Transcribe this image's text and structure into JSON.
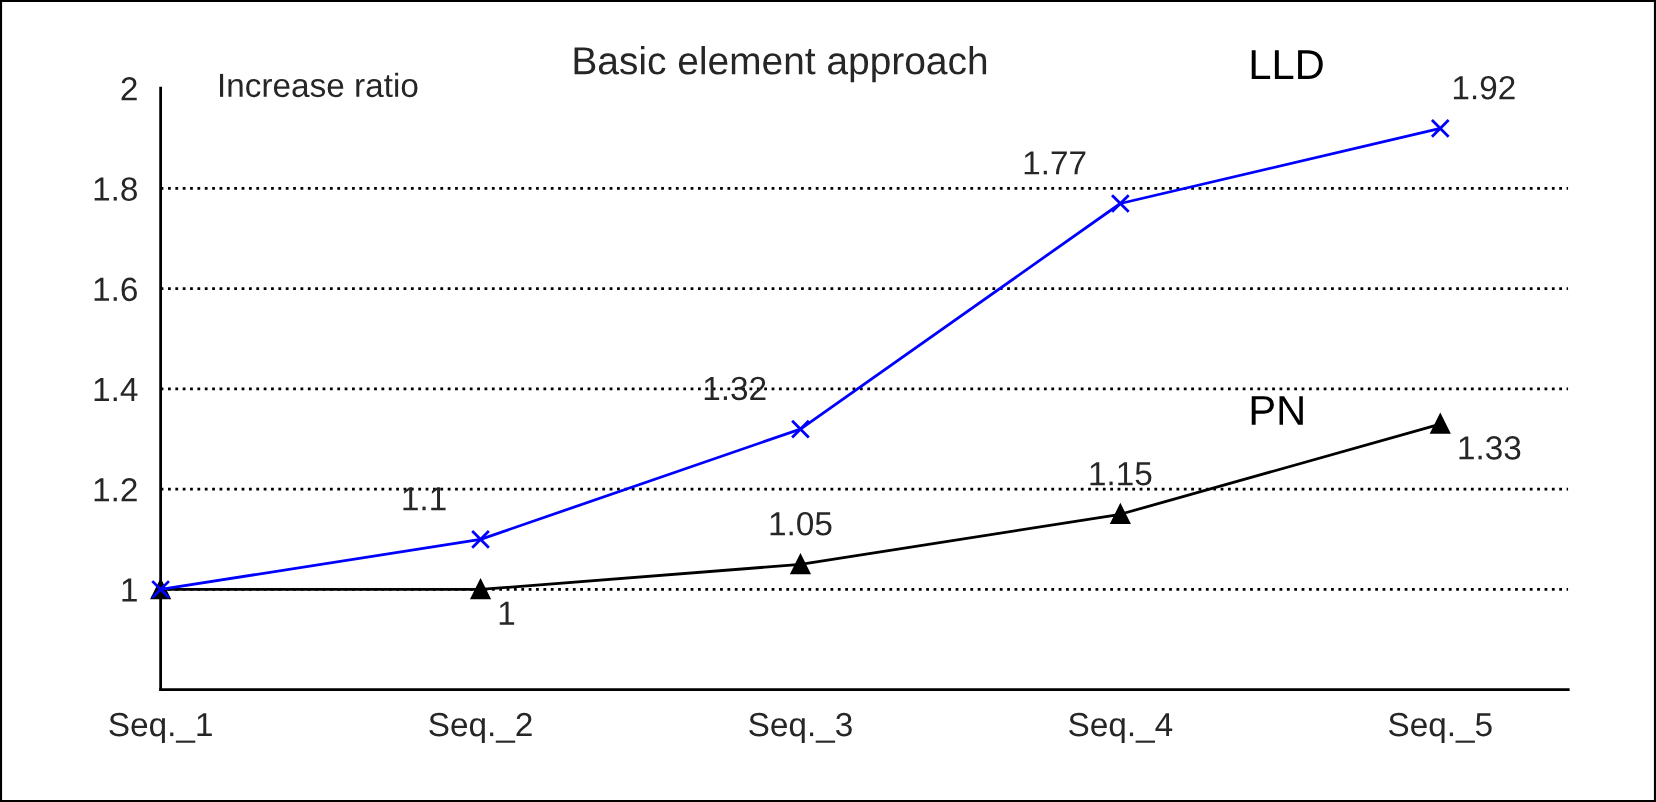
{
  "chart_data": {
    "type": "line",
    "title": "Basic element approach",
    "ylabel": "Increase ratio",
    "categories": [
      "Seq._1",
      "Seq._2",
      "Seq._3",
      "Seq._4",
      "Seq._5"
    ],
    "series": [
      {
        "name": "LLD",
        "color": "#0000ff",
        "marker": "cross",
        "values": [
          1,
          1.1,
          1.32,
          1.77,
          1.92
        ],
        "value_labels": [
          null,
          "1.1",
          "1.32",
          "1.77",
          "1.92"
        ]
      },
      {
        "name": "PN",
        "color": "#000000",
        "marker": "triangle",
        "values": [
          1,
          1,
          1.05,
          1.15,
          1.33
        ],
        "value_labels": [
          null,
          "1",
          "1.05",
          "1.15",
          "1.33"
        ]
      }
    ],
    "ylim": [
      0.8,
      2
    ],
    "yticks": [
      1,
      1.2,
      1.4,
      1.6,
      1.8,
      2
    ],
    "grid": "y",
    "line_style": "solid"
  }
}
